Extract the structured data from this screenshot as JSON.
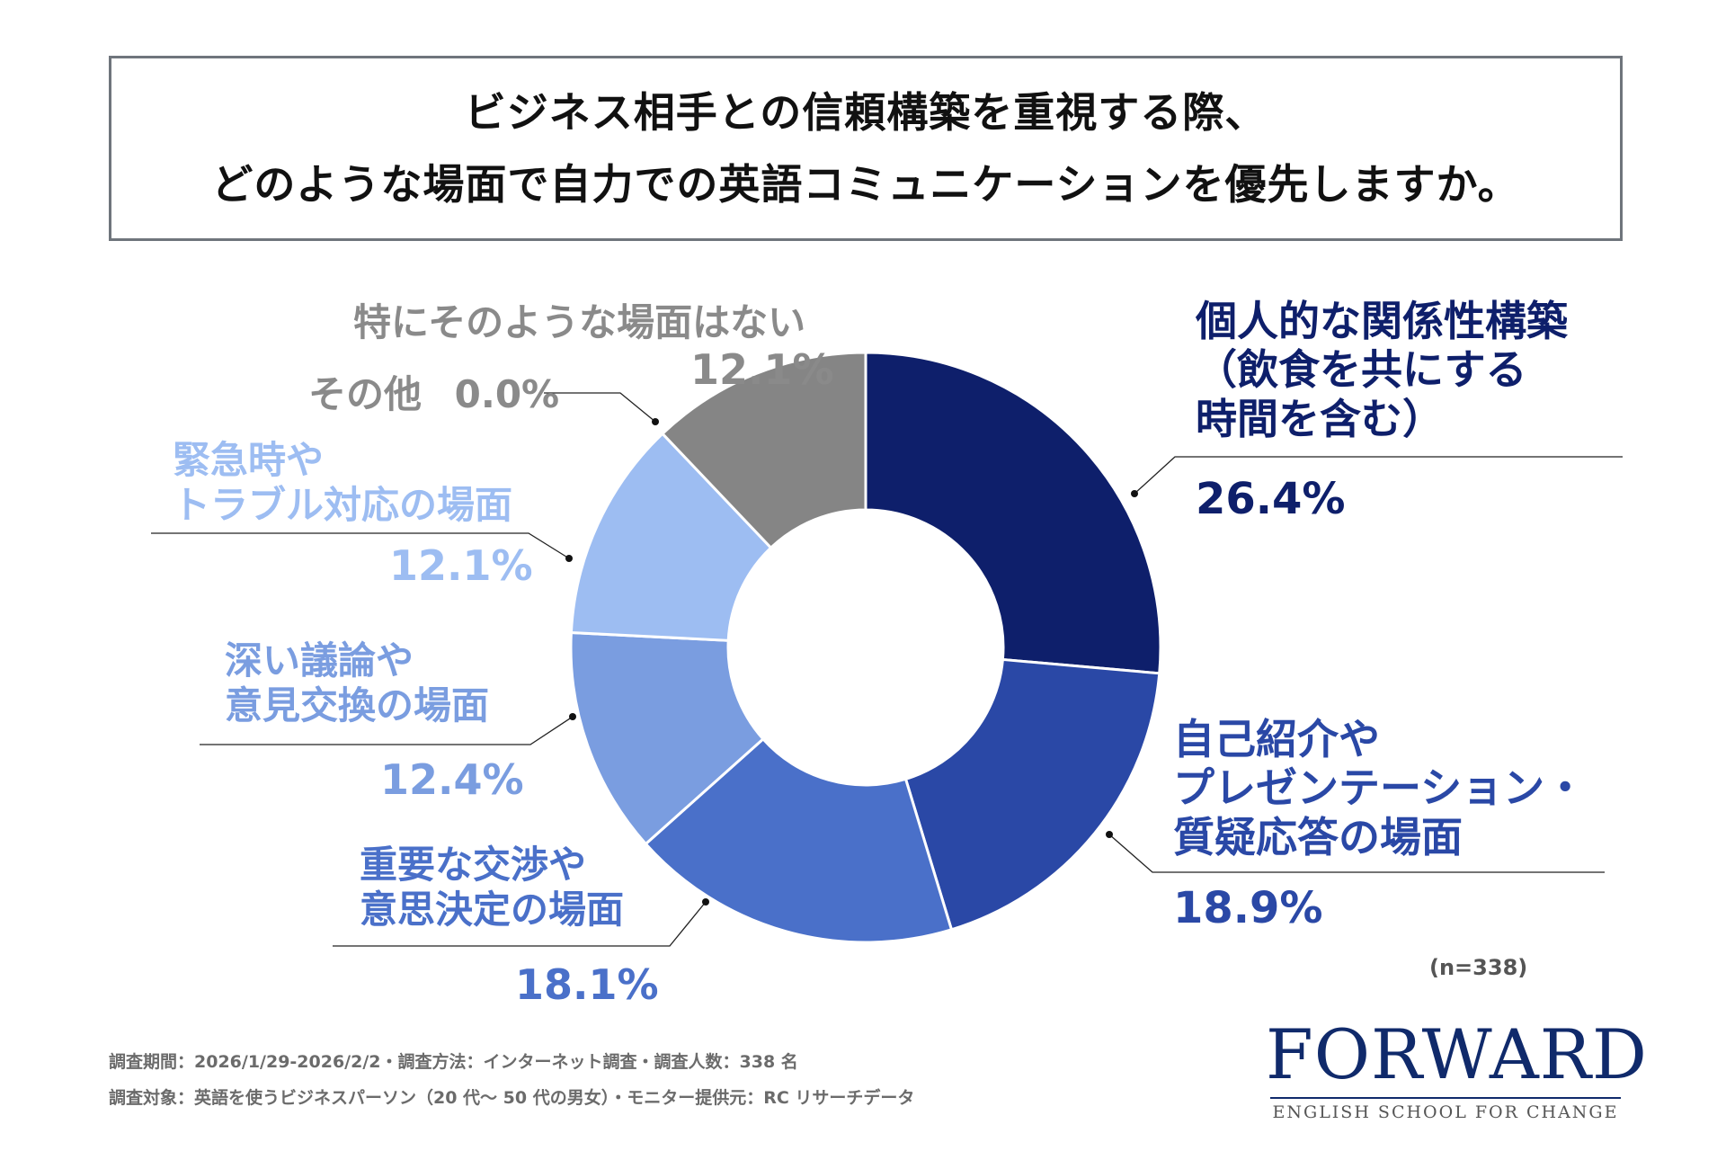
{
  "title": {
    "line1": "ビジネス相手との信頼構築を重視する際、",
    "line2": "どのような場面で自力での英語コミュニケーションを優先しますか。"
  },
  "chart_data": {
    "type": "pie",
    "variant": "donut",
    "slices": [
      {
        "line1": "個人的な関係性構築",
        "line2": "（飲食を共にする",
        "line3": "時間を含む）",
        "value": 26.4,
        "pct_text": "26.4%",
        "color": "#0e1f6b",
        "text_color": "#0e1f6b"
      },
      {
        "line1": "自己紹介や",
        "line2": "プレゼンテーション・",
        "line3": "質疑応答の場面",
        "value": 18.9,
        "pct_text": "18.9%",
        "color": "#2a48a6",
        "text_color": "#2a48a6"
      },
      {
        "line1": "重要な交渉や",
        "line2": "意思決定の場面",
        "value": 18.1,
        "pct_text": "18.1%",
        "color": "#4a70c9",
        "text_color": "#4a70c9"
      },
      {
        "line1": "深い議論や",
        "line2": "意見交換の場面",
        "value": 12.4,
        "pct_text": "12.4%",
        "color": "#7a9de0",
        "text_color": "#7a9de0"
      },
      {
        "line1": "緊急時や",
        "line2": "トラブル対応の場面",
        "value": 12.1,
        "pct_text": "12.1%",
        "color": "#9dbdf2",
        "text_color": "#9dbdf2"
      },
      {
        "line1": "その他",
        "value": 0.0,
        "pct_text": "0.0%",
        "color": "#dddddd",
        "text_color": "#8a8a8a"
      },
      {
        "line1": "特にそのような場面はない",
        "value": 12.1,
        "pct_text": "12.1%",
        "color": "#858585",
        "text_color": "#8a8a8a"
      }
    ],
    "sample_note": "(n=338)"
  },
  "footer": {
    "line1": "調査期間：2026/1/29-2026/2/2・調査方法：インターネット調査・調査人数：338 名",
    "line2": "調査対象：英語を使うビジネスパーソン（20 代〜 50 代の男女）・モニター提供元：RC リサーチデータ"
  },
  "logo": {
    "main": "FORWARD",
    "sub": "ENGLISH SCHOOL FOR CHANGE"
  }
}
